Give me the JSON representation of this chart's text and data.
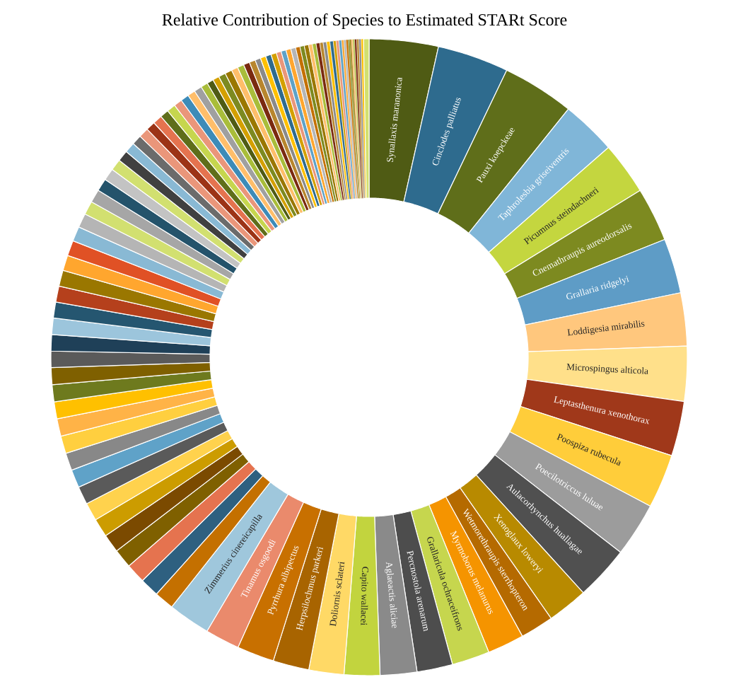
{
  "chart_data": {
    "type": "donut",
    "title": "Relative Contribution of Species to Estimated STARt Score",
    "categories": [
      "Synallaxis maranonica",
      "Cinclodes palliatus",
      "Pauxi koepckeae",
      "Taphrolesbia griseiventris",
      "Picumnus steindachneri",
      "Cnemathraupis aureodorsalis",
      "Grallaria ridgelyi",
      "Loddigesia mirabilis",
      "Microspingus alticola",
      "Leptasthenura xenothorax",
      "Poospiza rubecula",
      "Poecilotriccus luluae",
      "Aulacorhynchus huallagae",
      "Xenoglaux loweryi",
      "Wetmorethraupis sterrhopteron",
      "Myrmoborus melanurus",
      "Grallaricula ochraceifrons",
      "Percnostola arenarum",
      "Aglaeactis aliciae",
      "Capito wallacei",
      "Doliornis sclateri",
      "Herpsilochmus parkeri",
      "Pyrrhura albipectus",
      "Tinamus osgoodi",
      "Zimmerius cinereicapilla",
      null,
      null,
      null,
      null,
      null,
      null,
      null,
      null,
      null,
      null,
      null,
      null,
      null,
      null,
      null,
      null,
      null,
      null,
      null,
      null,
      null,
      null,
      null,
      null,
      null,
      null,
      null,
      null,
      null,
      null,
      null,
      null,
      null,
      null,
      null,
      null,
      null,
      null,
      null,
      null,
      null,
      null,
      null,
      null,
      null,
      null,
      null,
      null,
      null,
      null,
      null,
      null,
      null,
      null,
      null,
      null,
      null,
      null,
      null,
      null,
      null,
      null,
      null,
      null,
      null,
      null,
      null,
      null,
      null,
      null,
      null,
      null,
      null,
      null,
      null,
      null,
      null,
      null,
      null,
      null,
      null,
      null,
      null,
      null
    ],
    "values": [
      3.5,
      3.62,
      3.65,
      2.78,
      2.67,
      2.75,
      2.78,
      2.69,
      2.78,
      2.78,
      2.75,
      2.75,
      2.75,
      2.06,
      1.69,
      1.86,
      1.92,
      1.81,
      1.86,
      1.81,
      1.78,
      1.83,
      1.89,
      1.75,
      2.14,
      1.0,
      0.97,
      1.0,
      0.97,
      0.94,
      0.94,
      0.92,
      0.92,
      0.92,
      0.89,
      0.89,
      0.89,
      0.86,
      0.86,
      0.86,
      0.83,
      0.83,
      0.83,
      0.81,
      0.81,
      0.81,
      0.78,
      0.78,
      0.75,
      0.72,
      0.69,
      0.67,
      0.64,
      0.61,
      0.58,
      0.56,
      0.53,
      0.5,
      0.5,
      0.47,
      0.47,
      0.44,
      0.44,
      0.42,
      0.42,
      0.39,
      0.39,
      0.36,
      0.33,
      0.33,
      0.36,
      0.36,
      0.33,
      0.33,
      0.31,
      0.31,
      0.28,
      0.28,
      0.28,
      0.28,
      0.25,
      0.25,
      0.25,
      0.25,
      0.22,
      0.22,
      0.22,
      0.19,
      0.19,
      0.19,
      0.17,
      0.17,
      0.17,
      0.17,
      0.14,
      0.14,
      0.14,
      0.11,
      0.11,
      0.11,
      0.08,
      0.08,
      0.08,
      0.08,
      0.11,
      0.11,
      0.11,
      0.12,
      0.28
    ],
    "colors": [
      "#4f5b14",
      "#2e6b8e",
      "#5f6e1a",
      "#80b6d8",
      "#c4d63f",
      "#7d8a20",
      "#5e9cc6",
      "#ffc77d",
      "#ffe08a",
      "#a0381a",
      "#ffcd3a",
      "#9c9c9c",
      "#505050",
      "#b88a00",
      "#b56a00",
      "#f59400",
      "#c6d64e",
      "#4d4d4d",
      "#8a8a8a",
      "#c2d43e",
      "#ffd966",
      "#a86400",
      "#c87000",
      "#ea8a6c",
      "#9fc7dc",
      "#c47000",
      "#2e6080",
      "#e5734f",
      "#7f6000",
      "#7b4a00",
      "#cc9c00",
      "#ffd24d",
      "#5a5a5a",
      "#5fa2c8",
      "#888888",
      "#ffcf3f",
      "#ffb347",
      "#ffc000",
      "#6e7a1e",
      "#7f6000",
      "#5a5a5a",
      "#1f4058",
      "#9cc5dc",
      "#255670",
      "#b5401c",
      "#9a7700",
      "#ffa62e",
      "#e05125",
      "#89b9d4",
      "#b5b5b5",
      "#d2e070",
      "#a6a6a6",
      "#24536b",
      "#c3c3c3",
      "#d2e070",
      "#404040",
      "#89b9d4",
      "#6b6b6b",
      "#ea967a",
      "#9c3316",
      "#e5734f",
      "#5f6e1a",
      "#c6d64e",
      "#ea967a",
      "#3d8bb8",
      "#ffbe6a",
      "#a0a0a0",
      "#a9bd3a",
      "#4f5b14",
      "#d4a000",
      "#7d8a20",
      "#9a7700",
      "#ffbe6a",
      "#a9bd3a",
      "#7a2a10",
      "#b8862d",
      "#8a8a8a",
      "#ffc000",
      "#2e6b8e",
      "#d4a000",
      "#ea967a",
      "#5fa2c8",
      "#ffa62e",
      "#b5b5b5",
      "#c47000",
      "#7d8a20",
      "#9a7700",
      "#ffbe6a",
      "#a9bd3a",
      "#7a2a10",
      "#b8862d",
      "#8a8a8a",
      "#ffc000",
      "#2e6b8e",
      "#d4a000",
      "#ea967a",
      "#5fa2c8",
      "#ffa62e",
      "#b5b5b5",
      "#c47000",
      "#7d8a20",
      "#9a7700",
      "#ffbe6a",
      "#a9bd3a",
      "#7a2a10",
      "#b8862d",
      "#8a8a8a",
      "#ffc000",
      "#d2e070"
    ]
  }
}
